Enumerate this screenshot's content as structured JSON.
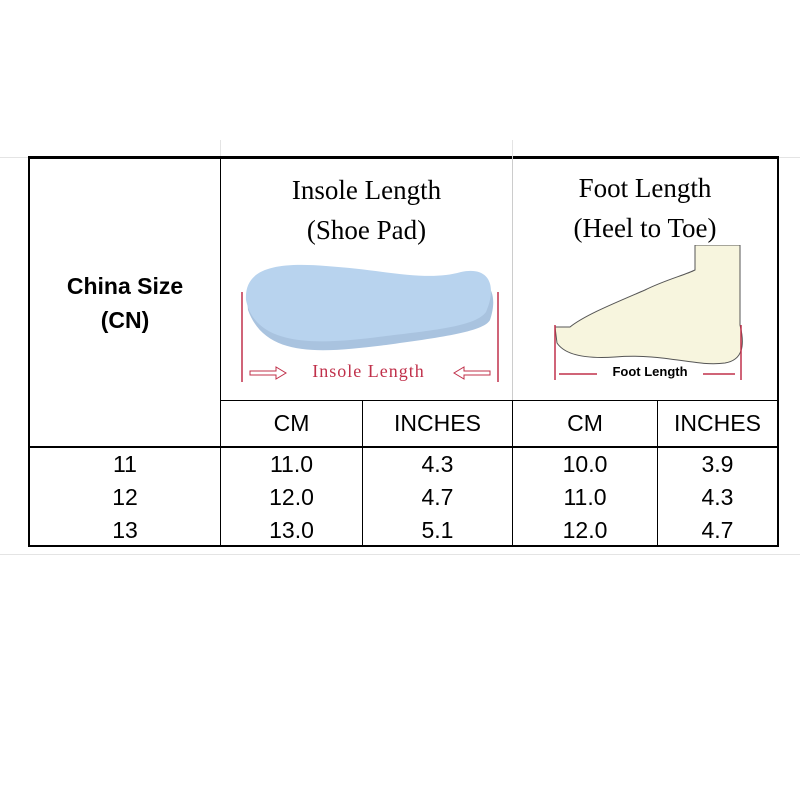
{
  "table": {
    "size_header": [
      "China Size",
      "(CN)"
    ],
    "insole_header": [
      "Insole Length",
      "(Shoe Pad)"
    ],
    "insole_image_label": "Insole Length",
    "foot_header": [
      "Foot Length",
      "(Heel to Toe)"
    ],
    "foot_image_label": "Foot Length",
    "subheaders": [
      "CM",
      "INCHES",
      "CM",
      "INCHES"
    ],
    "rows": [
      [
        "11",
        "11.0",
        "4.3",
        "10.0",
        "3.9"
      ],
      [
        "12",
        "12.0",
        "4.7",
        "11.0",
        "4.3"
      ],
      [
        "13",
        "13.0",
        "5.1",
        "12.0",
        "4.7"
      ]
    ],
    "colors": {
      "insole": "#b8d3ee",
      "foot": "#f7f5de",
      "measure_line": "#c0304a"
    }
  }
}
